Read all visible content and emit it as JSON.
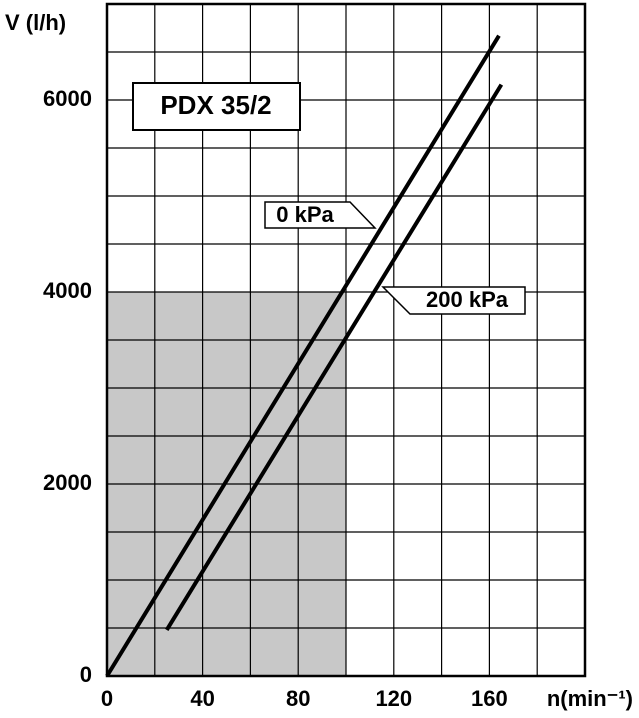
{
  "chart_data": {
    "type": "line",
    "title": "PDX 35/2",
    "y_label": "V (l/h)",
    "x_label": "n(min⁻¹)",
    "xlim": [
      0,
      200
    ],
    "ylim": [
      0,
      7000
    ],
    "xticks": [
      0,
      40,
      80,
      120,
      160
    ],
    "yticks": [
      0,
      2000,
      4000,
      6000
    ],
    "xgrid": [
      0,
      20,
      40,
      60,
      80,
      100,
      120,
      140,
      160,
      180,
      200
    ],
    "ygrid": [
      0,
      500,
      1000,
      1500,
      2000,
      2500,
      3000,
      3500,
      4000,
      4500,
      5000,
      5500,
      6000,
      6500,
      7000
    ],
    "grid": true,
    "shaded_region": {
      "x": [
        0,
        100
      ],
      "y": [
        0,
        4000
      ],
      "color": "#c8c8c8"
    },
    "series": [
      {
        "name": "0 kPa",
        "color": "#000000",
        "x": [
          0,
          164
        ],
        "values": [
          0,
          6670
        ]
      },
      {
        "name": "200 kPa",
        "color": "#000000",
        "x": [
          25,
          165
        ],
        "values": [
          480,
          6160
        ]
      }
    ]
  }
}
